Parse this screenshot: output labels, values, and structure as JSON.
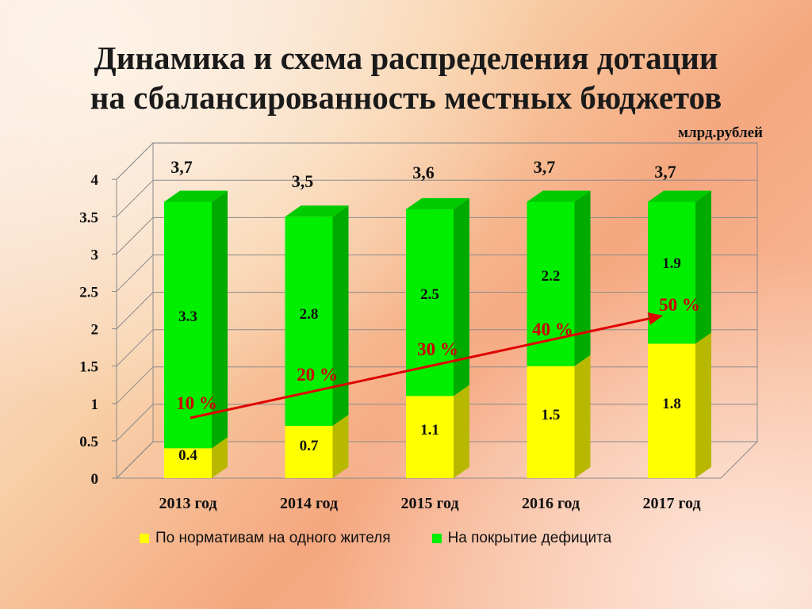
{
  "title": {
    "line1": "Динамика и схема распределения дотации",
    "line2": "на сбалансированность местных бюджетов"
  },
  "unit": "млрд.рублей",
  "colors": {
    "yellow": "#ffff00",
    "green": "#00ee00",
    "arrow": "#e00000",
    "percent_text": "#cc0000"
  },
  "chart_data": {
    "type": "bar",
    "stacked": true,
    "categories": [
      "2013 год",
      "2014 год",
      "2015 год",
      "2016 год",
      "2017 год"
    ],
    "series": [
      {
        "name": "По нормативам на одного жителя",
        "values": [
          0.4,
          0.7,
          1.1,
          1.5,
          1.8
        ],
        "color": "#ffff00"
      },
      {
        "name": "На покрытие дефицита",
        "values": [
          3.3,
          2.8,
          2.5,
          2.2,
          1.9
        ],
        "color": "#00ee00"
      }
    ],
    "totals": [
      "3,7",
      "3,5",
      "3,6",
      "3,7",
      "3,7"
    ],
    "total_values": [
      3.7,
      3.5,
      3.6,
      3.7,
      3.7
    ],
    "percent_labels": [
      "10 %",
      "20 %",
      "30 %",
      "40 %",
      "50 %"
    ],
    "ylim": [
      0,
      4
    ],
    "yticks": [
      "0",
      "0.5",
      "1",
      "1.5",
      "2",
      "2.5",
      "3",
      "3.5",
      "4"
    ],
    "ytick_values": [
      0,
      0.5,
      1,
      1.5,
      2,
      2.5,
      3,
      3.5,
      4
    ],
    "grid": true,
    "legend_position": "bottom",
    "three_d": true
  }
}
